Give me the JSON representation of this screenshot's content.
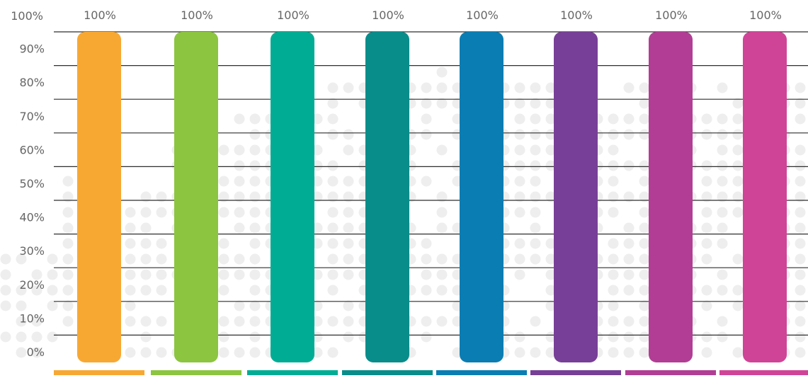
{
  "chart_data": {
    "type": "bar",
    "title": "",
    "xlabel": "",
    "ylabel": "",
    "ylim": [
      0,
      100
    ],
    "grid": true,
    "y_ticks": [
      "0%",
      "10%",
      "20%",
      "30%",
      "40%",
      "50%",
      "60%",
      "70%",
      "80%",
      "90%",
      "100%"
    ],
    "values": [
      100,
      100,
      100,
      100,
      100,
      100,
      100,
      100
    ],
    "value_labels": [
      "100%",
      "100%",
      "100%",
      "100%",
      "100%",
      "100%",
      "100%",
      "100%"
    ],
    "colors": [
      "#f7a833",
      "#8cc540",
      "#00ad94",
      "#088d8b",
      "#0a7db2",
      "#773f97",
      "#b13e94",
      "#d04497"
    ]
  }
}
